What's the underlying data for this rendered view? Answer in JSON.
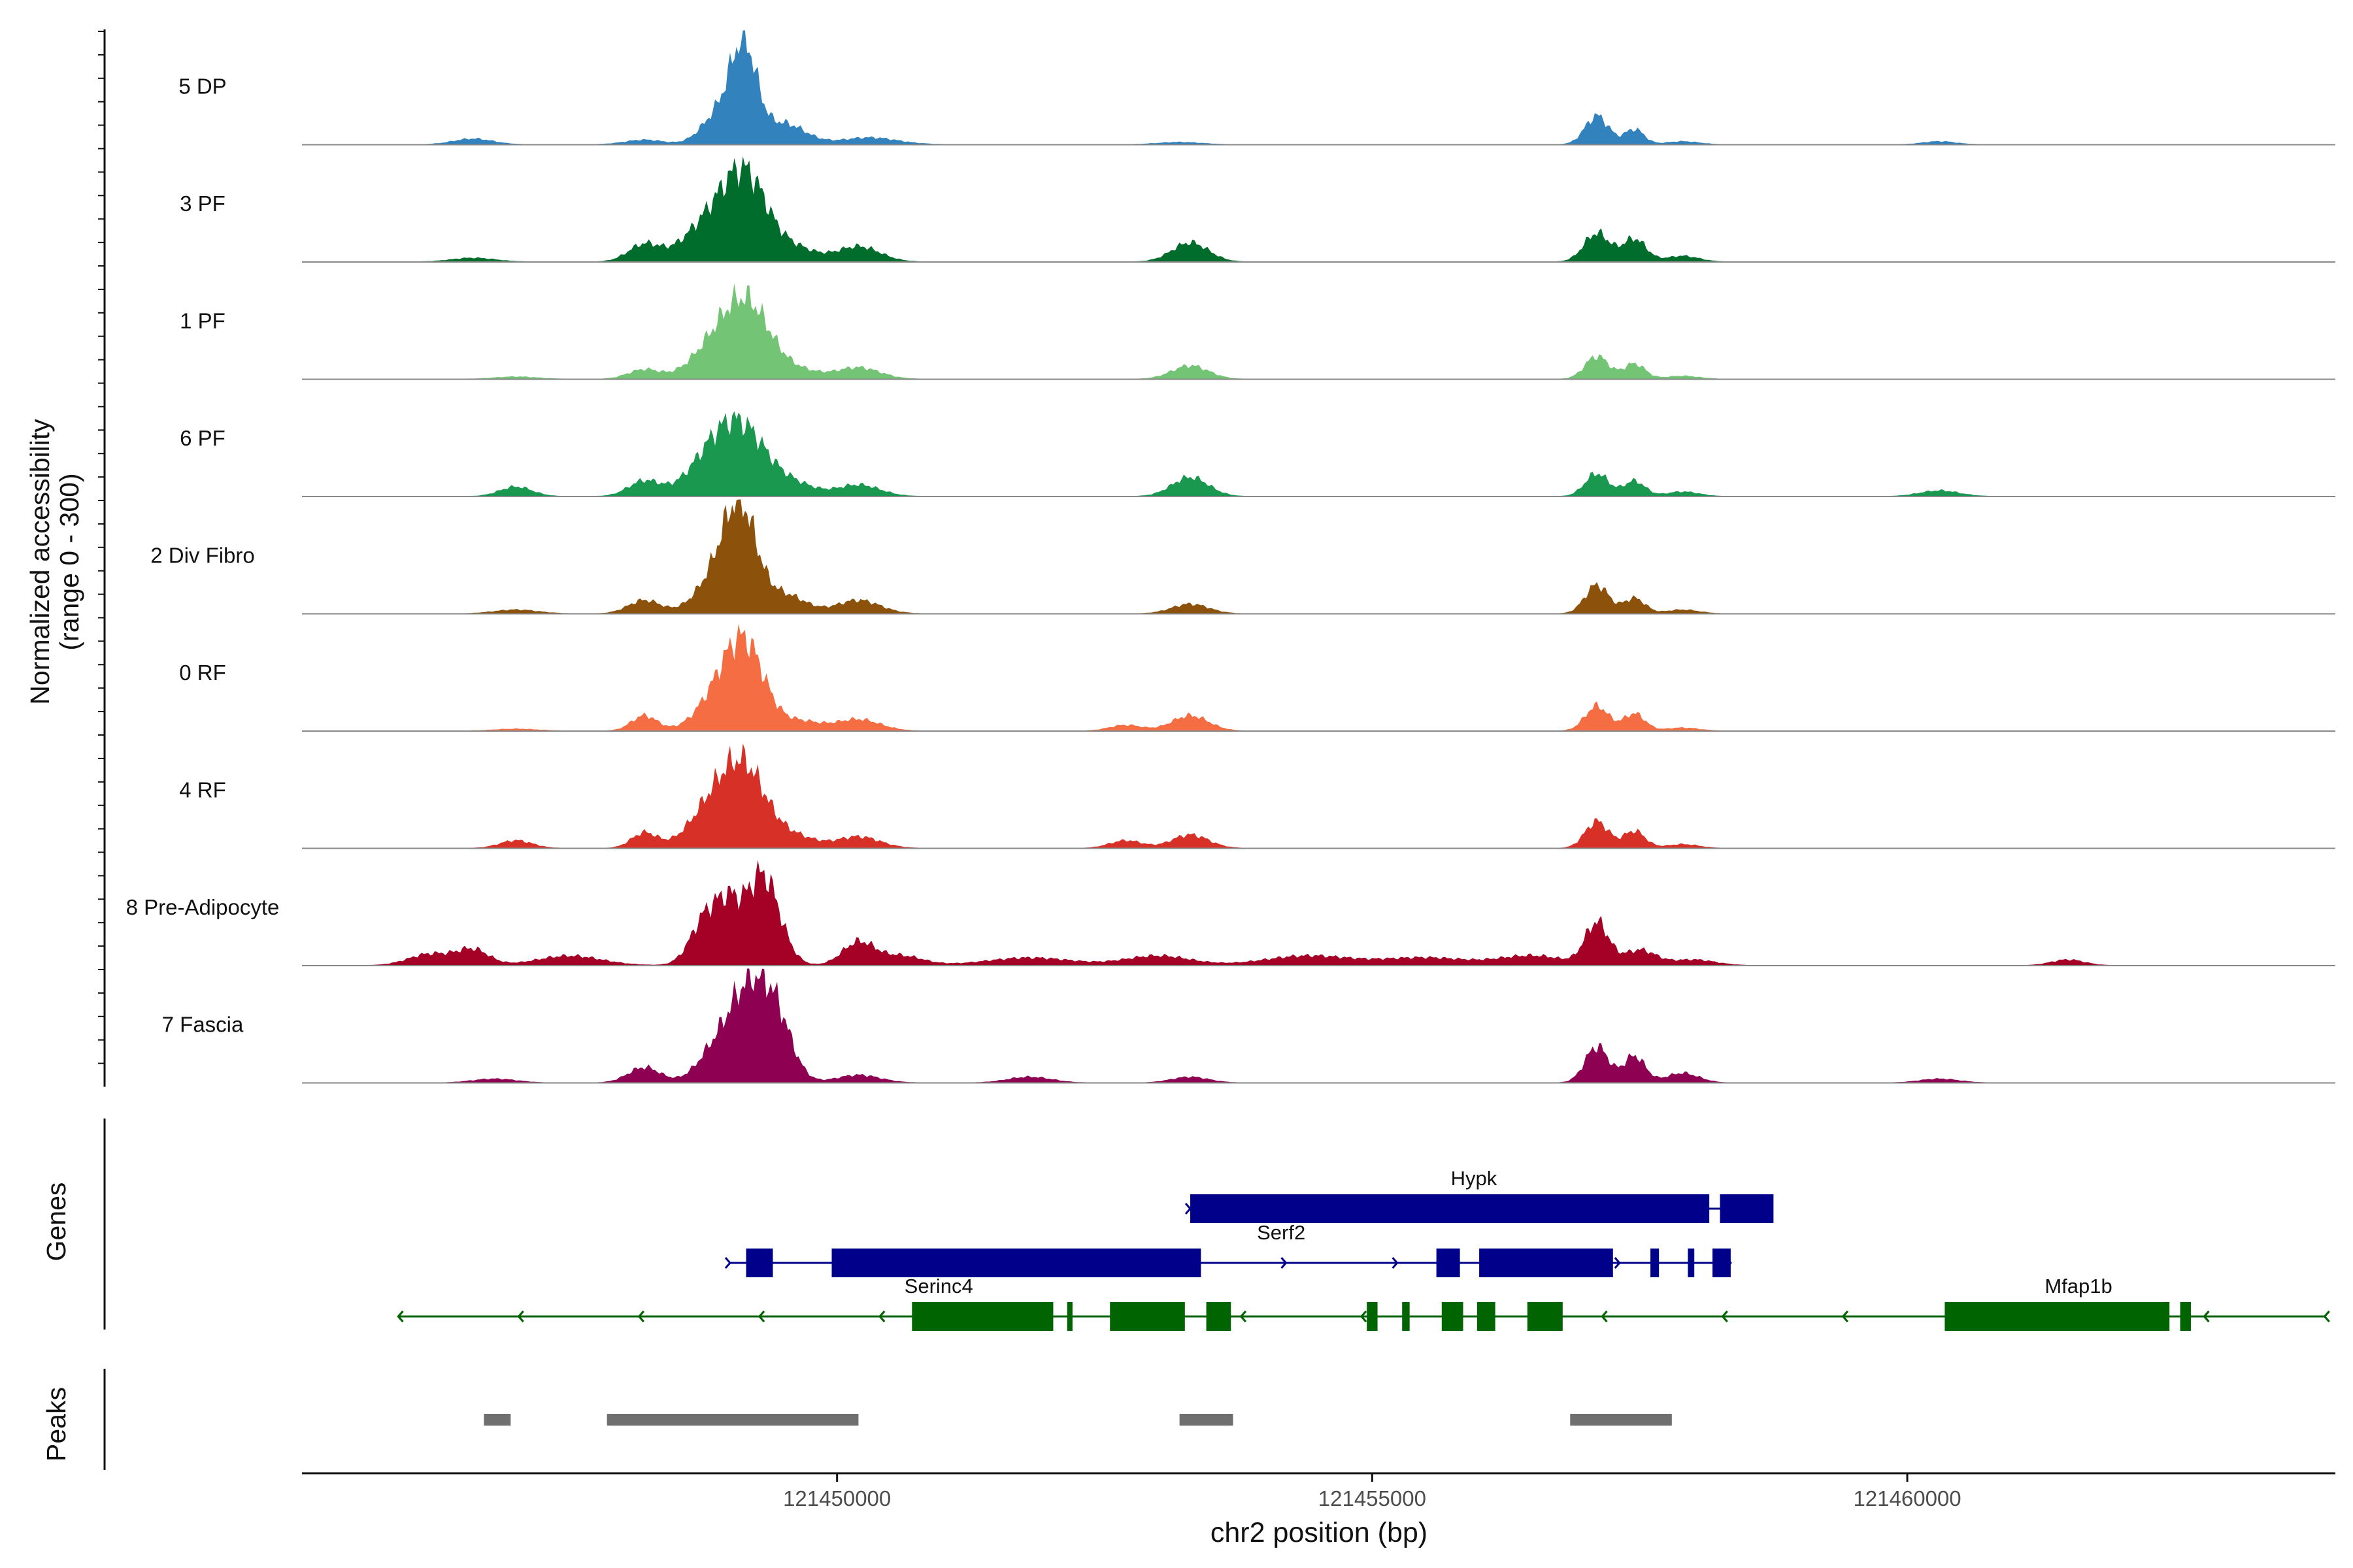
{
  "chart_data": {
    "type": "area",
    "title": "",
    "xlabel": "chr2 position (bp)",
    "ylabel": "Normalized accessibility",
    "ylabel_sub": "(range 0 - 300)",
    "xlim": [
      121445000,
      121464000
    ],
    "x_ticks": [
      121450000,
      121455000,
      121460000
    ],
    "x_tick_labels": [
      "121450000",
      "121455000",
      "121460000"
    ],
    "ylim": [
      0,
      300
    ],
    "panel_labels": {
      "genes": "Genes",
      "peaks": "Peaks"
    },
    "series": [
      {
        "name": "5 DP",
        "color": "#3182bd",
        "peaks": [
          [
            121446600,
            15,
            180
          ],
          [
            121448200,
            12,
            180
          ],
          [
            121448900,
            80,
            160
          ],
          [
            121449130,
            240,
            120
          ],
          [
            121449500,
            55,
            200
          ],
          [
            121450300,
            18,
            260
          ],
          [
            121453200,
            6,
            200
          ],
          [
            121457100,
            75,
            110
          ],
          [
            121457450,
            40,
            90
          ],
          [
            121457900,
            8,
            150
          ],
          [
            121460300,
            8,
            150
          ]
        ]
      },
      {
        "name": "3 PF",
        "color": "#006d2c",
        "peaks": [
          [
            121446600,
            10,
            200
          ],
          [
            121448200,
            45,
            150
          ],
          [
            121448800,
            100,
            230
          ],
          [
            121449150,
            210,
            200
          ],
          [
            121449600,
            35,
            200
          ],
          [
            121450200,
            40,
            200
          ],
          [
            121453300,
            50,
            170
          ],
          [
            121457100,
            75,
            120
          ],
          [
            121457450,
            60,
            110
          ],
          [
            121457900,
            15,
            150
          ]
        ]
      },
      {
        "name": "1 PF",
        "color": "#74c476",
        "peaks": [
          [
            121447000,
            6,
            200
          ],
          [
            121448200,
            25,
            150
          ],
          [
            121448800,
            60,
            200
          ],
          [
            121449150,
            200,
            220
          ],
          [
            121449650,
            20,
            200
          ],
          [
            121450200,
            30,
            200
          ],
          [
            121453300,
            35,
            170
          ],
          [
            121457100,
            60,
            110
          ],
          [
            121457450,
            40,
            100
          ],
          [
            121457900,
            8,
            150
          ]
        ]
      },
      {
        "name": "6 PF",
        "color": "#1a9850",
        "peaks": [
          [
            121447000,
            25,
            150
          ],
          [
            121448200,
            40,
            150
          ],
          [
            121448850,
            110,
            230
          ],
          [
            121449150,
            140,
            220
          ],
          [
            121449600,
            30,
            200
          ],
          [
            121450200,
            30,
            200
          ],
          [
            121453300,
            50,
            170
          ],
          [
            121457100,
            60,
            110
          ],
          [
            121457450,
            40,
            100
          ],
          [
            121457900,
            12,
            150
          ],
          [
            121460300,
            15,
            180
          ]
        ]
      },
      {
        "name": "2 Div Fibro",
        "color": "#8c510a",
        "peaks": [
          [
            121447000,
            10,
            200
          ],
          [
            121448200,
            35,
            150
          ],
          [
            121448900,
            100,
            200
          ],
          [
            121449100,
            230,
            150
          ],
          [
            121449500,
            50,
            200
          ],
          [
            121450200,
            35,
            200
          ],
          [
            121453300,
            25,
            170
          ],
          [
            121457100,
            75,
            110
          ],
          [
            121457450,
            40,
            100
          ],
          [
            121457900,
            10,
            150
          ]
        ]
      },
      {
        "name": "0 RF",
        "color": "#f46d43",
        "peaks": [
          [
            121447000,
            5,
            200
          ],
          [
            121448200,
            40,
            120
          ],
          [
            121448900,
            90,
            200
          ],
          [
            121449150,
            200,
            180
          ],
          [
            121449650,
            25,
            200
          ],
          [
            121450200,
            30,
            200
          ],
          [
            121452700,
            15,
            150
          ],
          [
            121453300,
            40,
            170
          ],
          [
            121457100,
            65,
            110
          ],
          [
            121457450,
            45,
            100
          ],
          [
            121457900,
            8,
            150
          ]
        ]
      },
      {
        "name": "4 RF",
        "color": "#d73027",
        "peaks": [
          [
            121447000,
            20,
            150
          ],
          [
            121448200,
            40,
            120
          ],
          [
            121448850,
            110,
            220
          ],
          [
            121449150,
            180,
            200
          ],
          [
            121449600,
            30,
            200
          ],
          [
            121450200,
            30,
            200
          ],
          [
            121452700,
            20,
            150
          ],
          [
            121453300,
            35,
            170
          ],
          [
            121457100,
            70,
            110
          ],
          [
            121457450,
            45,
            100
          ],
          [
            121457900,
            10,
            150
          ]
        ]
      },
      {
        "name": "8 Pre-Adipocyte",
        "color": "#a50026",
        "peaks": [
          [
            121446200,
            30,
            200
          ],
          [
            121446600,
            40,
            150
          ],
          [
            121447500,
            25,
            300
          ],
          [
            121448800,
            140,
            150
          ],
          [
            121449000,
            90,
            100
          ],
          [
            121449300,
            240,
            160
          ],
          [
            121450200,
            60,
            150
          ],
          [
            121450600,
            25,
            200
          ],
          [
            121451800,
            20,
            400
          ],
          [
            121453000,
            25,
            300
          ],
          [
            121454400,
            25,
            400
          ],
          [
            121455500,
            20,
            400
          ],
          [
            121456500,
            25,
            300
          ],
          [
            121457100,
            110,
            110
          ],
          [
            121457500,
            40,
            150
          ],
          [
            121458000,
            15,
            200
          ],
          [
            121461500,
            15,
            150
          ]
        ]
      },
      {
        "name": "7 Fascia",
        "color": "#8e0152",
        "peaks": [
          [
            121446800,
            10,
            200
          ],
          [
            121448200,
            40,
            150
          ],
          [
            121448900,
            100,
            180
          ],
          [
            121449150,
            170,
            150
          ],
          [
            121449400,
            200,
            160
          ],
          [
            121450200,
            20,
            200
          ],
          [
            121451800,
            15,
            200
          ],
          [
            121453300,
            15,
            170
          ],
          [
            121457100,
            95,
            110
          ],
          [
            121457450,
            70,
            100
          ],
          [
            121457900,
            25,
            150
          ],
          [
            121460300,
            10,
            180
          ]
        ]
      }
    ],
    "genes": [
      {
        "name": "Hypk",
        "strand": "+",
        "row": 0,
        "color": "#00008b",
        "span": [
          121453300,
          121458700
        ],
        "label_x": 121455950,
        "exons": [
          [
            121453300,
            121458150
          ],
          [
            121458250,
            121458750
          ]
        ]
      },
      {
        "name": "Serf2",
        "strand": "+",
        "row": 1,
        "color": "#00008b",
        "span": [
          121449000,
          121458350
        ],
        "label_x": 121454150,
        "exons": [
          [
            121449150,
            121449400
          ],
          [
            121449950,
            121453400
          ],
          [
            121455600,
            121455820
          ],
          [
            121456000,
            121457250
          ],
          [
            121457600,
            121457680
          ],
          [
            121457950,
            121458010
          ],
          [
            121458180,
            121458350
          ]
        ]
      },
      {
        "name": "Serinc4",
        "strand": "-",
        "row": 2,
        "color": "#006400",
        "span": [
          121445900,
          121463900
        ],
        "label_x": 121450950,
        "exons": [
          [
            121450700,
            121452020
          ],
          [
            121452150,
            121452200
          ],
          [
            121452550,
            121453250
          ],
          [
            121453450,
            121453680
          ],
          [
            121454950,
            121455050
          ],
          [
            121455280,
            121455350
          ],
          [
            121455650,
            121455850
          ],
          [
            121455980,
            121456150
          ],
          [
            121456450,
            121456780
          ]
        ]
      },
      {
        "name": "Mfap1b",
        "strand": "-",
        "row": 2,
        "color": "#006400",
        "span": [
          121445900,
          121463900
        ],
        "label_x": 121461600,
        "exons": [
          [
            121460350,
            121462450
          ],
          [
            121462550,
            121462650
          ]
        ]
      }
    ],
    "peaks_track": [
      [
        121446700,
        121446950
      ],
      [
        121447850,
        121450200
      ],
      [
        121453200,
        121453700
      ],
      [
        121456850,
        121457800
      ]
    ]
  }
}
